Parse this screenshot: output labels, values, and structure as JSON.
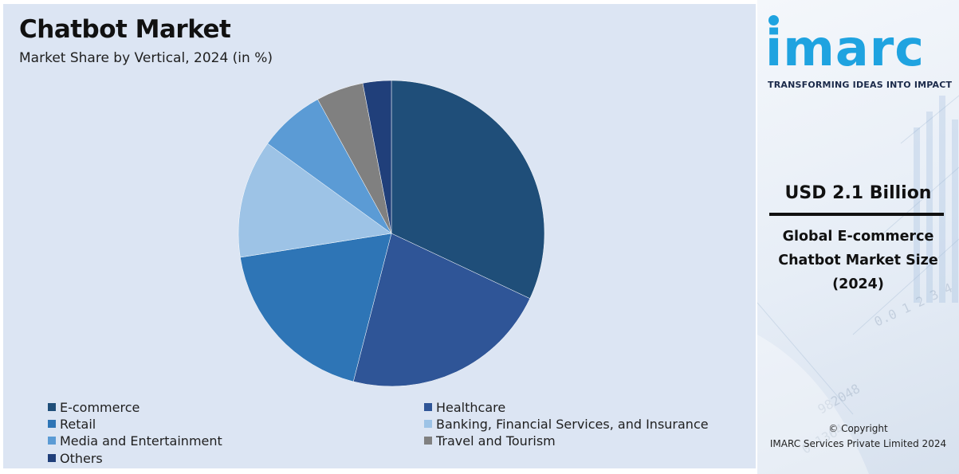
{
  "chart_data": {
    "type": "pie",
    "title": "Chatbot Market",
    "subtitle": "Market Share by Vertical, 2024 (in %)",
    "categories": [
      "E-commerce",
      "Healthcare",
      "Retail",
      "Banking, Financial Services, and Insurance",
      "Media and Entertainment",
      "Travel and Tourism",
      "Others"
    ],
    "values": [
      32,
      22,
      18.5,
      12.5,
      7,
      5,
      3
    ],
    "colors": [
      "#1f4e79",
      "#2f5597",
      "#2e75b6",
      "#9dc3e6",
      "#5b9bd5",
      "#808080",
      "#203f7a"
    ],
    "legend_position": "bottom",
    "start_angle": "12 o'clock",
    "direction": "clockwise"
  },
  "sidebar": {
    "logo": "imarc",
    "tagline": "TRANSFORMING IDEAS INTO IMPACT",
    "market_value": "USD 2.1 Billion",
    "description_lines": [
      "Global E-commerce",
      "Chatbot Market Size",
      "(2024)"
    ],
    "copyright": "© Copyright",
    "company": "IMARC Services Private Limited 2024"
  },
  "colors": {
    "panel_background": "#dce5f3",
    "brand_blue": "#1fa3e0"
  }
}
